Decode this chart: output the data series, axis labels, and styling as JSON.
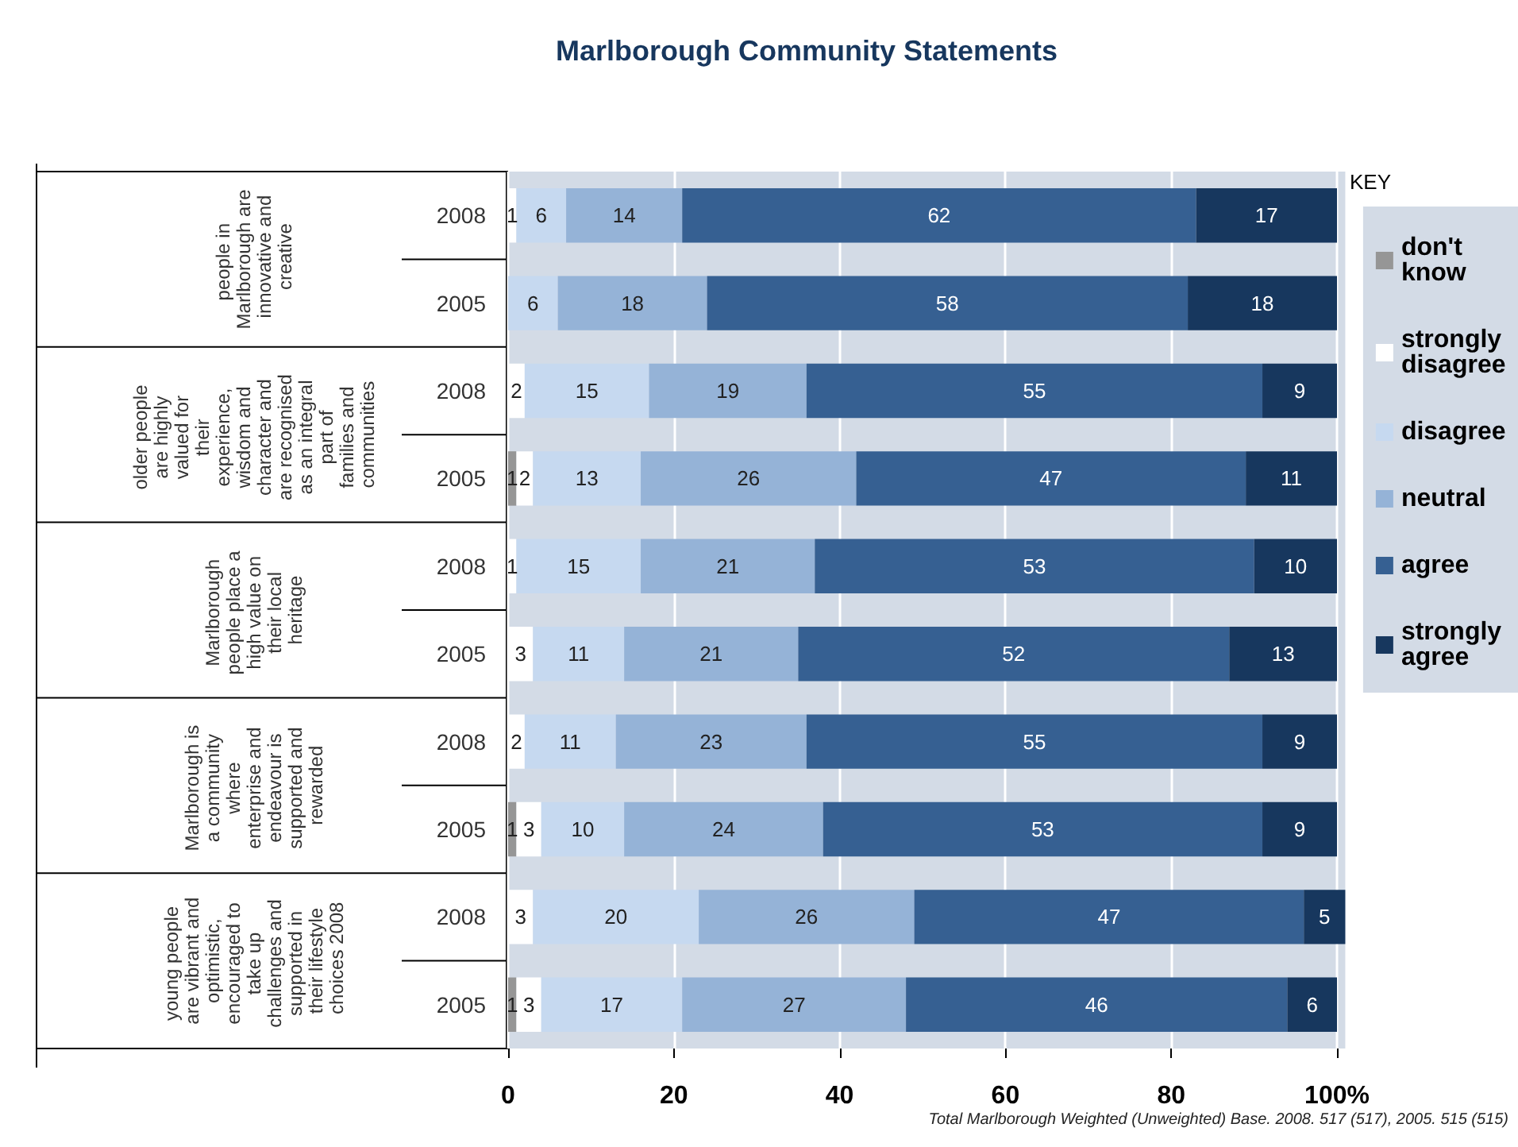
{
  "chart_data": {
    "type": "bar",
    "orientation": "horizontal",
    "stacked": true,
    "title": "Marlborough Community Statements",
    "legend_title": "KEY",
    "legend": "right",
    "grid": "x",
    "data_labels": true,
    "categories": [
      "2008",
      "2005",
      "2008",
      "2005",
      "2008",
      "2005",
      "2008",
      "2005",
      "2008",
      "2005"
    ],
    "series": [
      {
        "name": "don't know",
        "color": "#969696",
        "values": [
          null,
          null,
          null,
          1,
          null,
          null,
          null,
          1,
          null,
          1
        ]
      },
      {
        "name": "strongly disagree",
        "color": "#ffffff",
        "values": [
          1,
          null,
          2,
          2,
          1,
          3,
          2,
          3,
          3,
          3
        ]
      },
      {
        "name": "disagree",
        "color": "#c6d9f0",
        "values": [
          6,
          6,
          15,
          13,
          15,
          11,
          11,
          10,
          20,
          17
        ]
      },
      {
        "name": "neutral",
        "color": "#95b3d7",
        "values": [
          14,
          18,
          19,
          26,
          21,
          21,
          23,
          24,
          26,
          27
        ]
      },
      {
        "name": "agree",
        "color": "#366092",
        "values": [
          62,
          58,
          55,
          47,
          53,
          52,
          55,
          53,
          47,
          46
        ]
      },
      {
        "name": "strongly agree",
        "color": "#17375e",
        "values": [
          17,
          18,
          9,
          11,
          10,
          13,
          9,
          9,
          5,
          6
        ]
      }
    ],
    "xlim": [
      0,
      101
    ],
    "xticks": [
      0,
      20,
      40,
      60,
      80,
      {
        "value": 100,
        "label": "100%"
      }
    ],
    "annotations": [
      "people in Marlborough are innovative and creative",
      "older people are highly valued for their experience, wisdom and character and are recognised as an integral part of families and communities",
      "Marlborough people place a high value on their local heritage",
      "Marlborough is a community where enterprise and endeavour is supported and rewarded",
      "young people are vibrant and optimistic, encouraged to take up challenges and supported in their lifestyle choices 2008",
      "Total Marlborough Weighted (Unweighted) Base. 2008. 517 (517), 2005. 515 (515)"
    ]
  }
}
